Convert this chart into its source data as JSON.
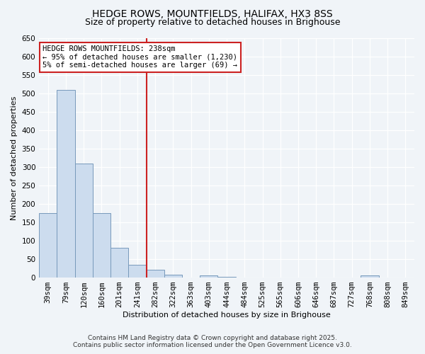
{
  "title1": "HEDGE ROWS, MOUNTFIELDS, HALIFAX, HX3 8SS",
  "title2": "Size of property relative to detached houses in Brighouse",
  "xlabel": "Distribution of detached houses by size in Brighouse",
  "ylabel": "Number of detached properties",
  "categories": [
    "39sqm",
    "79sqm",
    "120sqm",
    "160sqm",
    "201sqm",
    "241sqm",
    "282sqm",
    "322sqm",
    "363sqm",
    "403sqm",
    "444sqm",
    "484sqm",
    "525sqm",
    "565sqm",
    "606sqm",
    "646sqm",
    "687sqm",
    "727sqm",
    "768sqm",
    "808sqm",
    "849sqm"
  ],
  "values": [
    175,
    510,
    310,
    175,
    80,
    35,
    22,
    8,
    0,
    5,
    2,
    1,
    0,
    0,
    0,
    0,
    0,
    0,
    5,
    0,
    0
  ],
  "bar_color": "#ccdcee",
  "bar_edge_color": "#7799bb",
  "vline_x_index": 5,
  "vline_color": "#cc2222",
  "ylim": [
    0,
    650
  ],
  "yticks": [
    0,
    50,
    100,
    150,
    200,
    250,
    300,
    350,
    400,
    450,
    500,
    550,
    600,
    650
  ],
  "annotation_title": "HEDGE ROWS MOUNTFIELDS: 238sqm",
  "annotation_line1": "← 95% of detached houses are smaller (1,230)",
  "annotation_line2": "5% of semi-detached houses are larger (69) →",
  "annotation_box_facecolor": "#ffffff",
  "annotation_box_edgecolor": "#cc2222",
  "bg_color": "#f0f4f8",
  "plot_bg_color": "#f0f4f8",
  "grid_color": "#ffffff",
  "footer1": "Contains HM Land Registry data © Crown copyright and database right 2025.",
  "footer2": "Contains public sector information licensed under the Open Government Licence v3.0.",
  "title_fontsize": 10,
  "subtitle_fontsize": 9,
  "axis_label_fontsize": 8,
  "tick_fontsize": 7.5,
  "annotation_fontsize": 7.5,
  "footer_fontsize": 6.5
}
